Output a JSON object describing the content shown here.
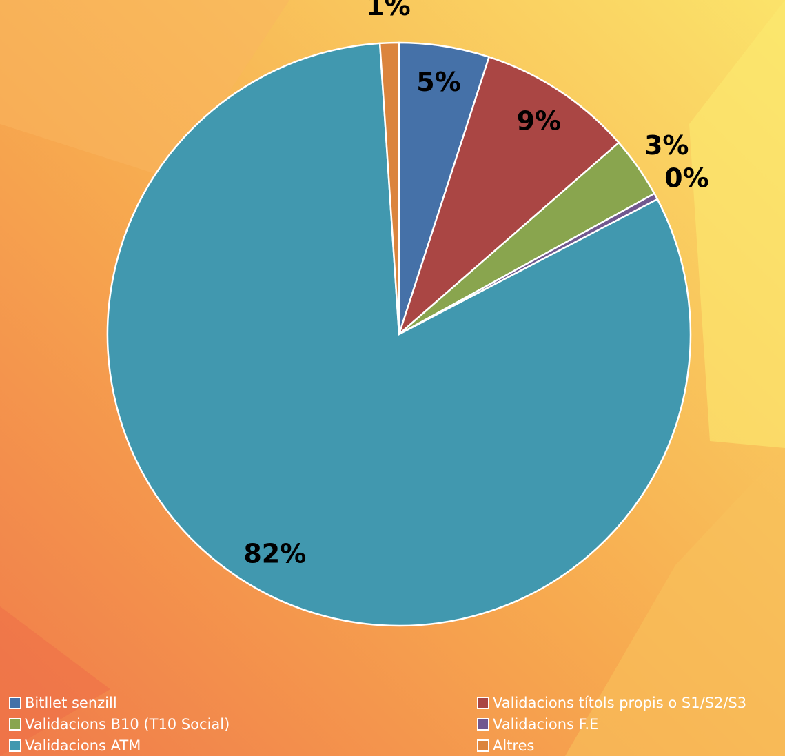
{
  "chart_data": {
    "type": "pie",
    "categories": [
      "Bitllet senzill",
      "Validacions títols propis o S1/S2/S3",
      "Validacions B10 (T10 Social)",
      "Validacions F.E",
      "Validacions ATM",
      "Altres"
    ],
    "values": [
      5,
      8.6,
      3.4,
      0.35,
      81.7,
      1.05
    ],
    "value_labels": [
      "5%",
      "9%",
      "3%",
      "0%",
      "82%",
      "1%"
    ],
    "colors": [
      "#4571a8",
      "#aa4644",
      "#89a54e",
      "#71588f",
      "#4198af",
      "#db843d"
    ],
    "legend": "bottom"
  }
}
